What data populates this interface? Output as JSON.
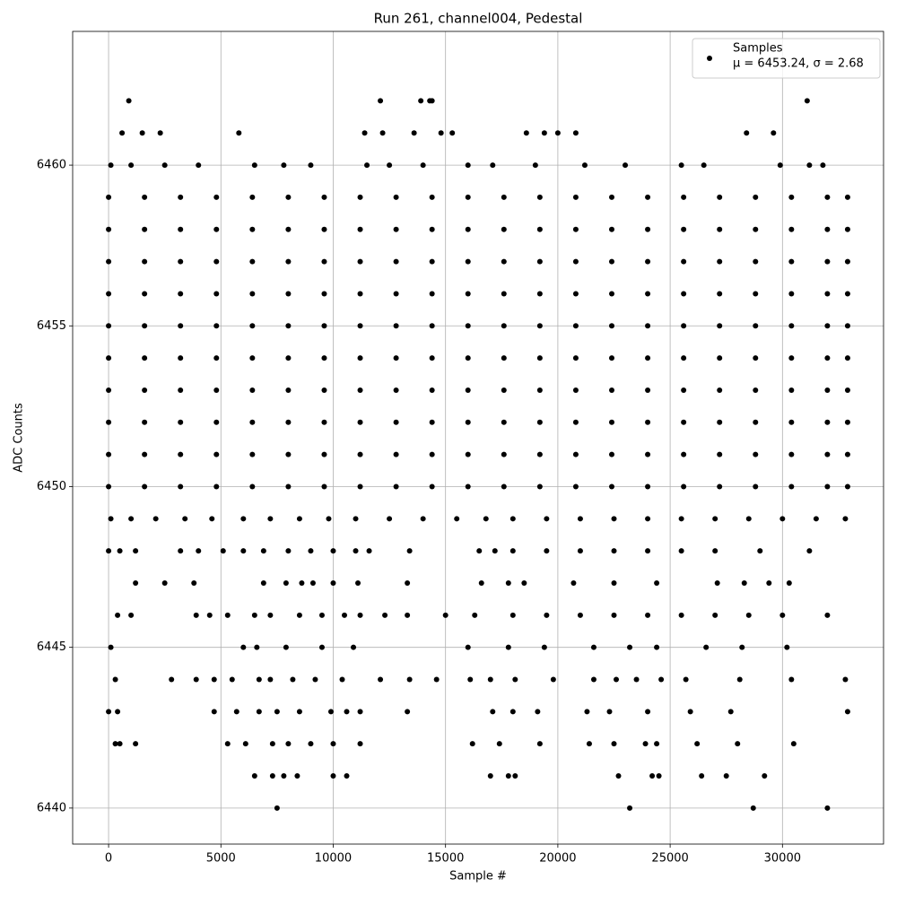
{
  "chart_data": {
    "type": "scatter",
    "title": "Run 261, channel004, Pedestal",
    "x_label": "Sample #",
    "y_label": "ADC Counts",
    "xlim": [
      -1600,
      34500
    ],
    "ylim": [
      6438.88,
      6464.16
    ],
    "xticks": [
      0,
      5000,
      10000,
      15000,
      20000,
      25000,
      30000
    ],
    "yticks": [
      6440,
      6445,
      6450,
      6455,
      6460
    ],
    "grid": true,
    "legend_position": "upper right",
    "legend_note": "μ = 6453.24, σ = 2.68",
    "series": [
      {
        "name": "Samples",
        "color": "#000000",
        "x": [
          900,
          12100,
          13900,
          14300,
          14400,
          31100,
          600,
          1500,
          2300,
          5800,
          11400,
          12200,
          13600,
          14800,
          15300,
          18600,
          19400,
          20000,
          20800,
          28400,
          29600,
          100,
          1000,
          2500,
          4000,
          6500,
          7800,
          9000,
          11500,
          12500,
          14000,
          16000,
          17100,
          19000,
          21200,
          23000,
          25500,
          26500,
          29900,
          31200,
          31800,
          0,
          1600,
          3200,
          4800,
          6400,
          8000,
          9600,
          11200,
          12800,
          14400,
          16000,
          17600,
          19200,
          20800,
          22400,
          24000,
          25600,
          27200,
          28800,
          30400,
          32000,
          32900,
          0,
          1600,
          3200,
          4800,
          6400,
          8000,
          9600,
          11200,
          12800,
          14400,
          16000,
          17600,
          19200,
          20800,
          22400,
          24000,
          25600,
          27200,
          28800,
          30400,
          32000,
          32900,
          0,
          1600,
          3200,
          4800,
          6400,
          8000,
          9600,
          11200,
          12800,
          14400,
          16000,
          17600,
          19200,
          20800,
          22400,
          24000,
          25600,
          27200,
          28800,
          30400,
          32000,
          32900,
          0,
          1600,
          3200,
          4800,
          6400,
          8000,
          9600,
          11200,
          12800,
          14400,
          16000,
          17600,
          19200,
          20800,
          22400,
          24000,
          25600,
          27200,
          28800,
          30400,
          32000,
          32900,
          0,
          1600,
          3200,
          4800,
          6400,
          8000,
          9600,
          11200,
          12800,
          14400,
          16000,
          17600,
          19200,
          20800,
          22400,
          24000,
          25600,
          27200,
          28800,
          30400,
          32000,
          32900,
          0,
          1600,
          3200,
          4800,
          6400,
          8000,
          9600,
          11200,
          12800,
          14400,
          16000,
          17600,
          19200,
          20800,
          22400,
          24000,
          25600,
          27200,
          28800,
          30400,
          32000,
          32900,
          0,
          1600,
          3200,
          4800,
          6400,
          8000,
          9600,
          11200,
          12800,
          14400,
          16000,
          17600,
          19200,
          20800,
          22400,
          24000,
          25600,
          27200,
          28800,
          30400,
          32000,
          32900,
          0,
          1600,
          3200,
          4800,
          6400,
          8000,
          9600,
          11200,
          12800,
          14400,
          16000,
          17600,
          19200,
          20800,
          22400,
          24000,
          25600,
          27200,
          28800,
          30400,
          32000,
          32900,
          0,
          1600,
          3200,
          4800,
          6400,
          8000,
          9600,
          11200,
          12800,
          14400,
          16000,
          17600,
          19200,
          20800,
          22400,
          24000,
          25600,
          27200,
          28800,
          30400,
          32000,
          32900,
          0,
          1600,
          3200,
          4800,
          6400,
          8000,
          9600,
          11200,
          12800,
          14400,
          16000,
          17600,
          19200,
          20800,
          22400,
          24000,
          25600,
          27200,
          28800,
          30400,
          32000,
          32900,
          100,
          1000,
          2100,
          3400,
          4600,
          6000,
          7200,
          8500,
          9800,
          11000,
          12500,
          14000,
          15500,
          16800,
          18000,
          19500,
          21000,
          22500,
          24000,
          25500,
          27000,
          28500,
          30000,
          31500,
          32800,
          0,
          500,
          1200,
          3200,
          4000,
          5100,
          6000,
          6900,
          8000,
          9000,
          10000,
          11000,
          11600,
          13400,
          16500,
          17200,
          18000,
          19500,
          21000,
          22500,
          24000,
          25500,
          27000,
          29000,
          31200,
          1200,
          2500,
          3800,
          6900,
          7900,
          8600,
          9100,
          10000,
          11100,
          13300,
          16600,
          17800,
          18500,
          20700,
          22500,
          24400,
          27100,
          28300,
          29400,
          30300,
          400,
          1000,
          3900,
          4500,
          5300,
          6500,
          7200,
          8500,
          9500,
          10500,
          11200,
          12300,
          13300,
          15000,
          16300,
          18000,
          19500,
          21000,
          22500,
          24000,
          25500,
          27000,
          28500,
          30000,
          32000,
          100,
          6000,
          6600,
          7900,
          9500,
          10900,
          16000,
          17800,
          19400,
          21600,
          23200,
          24400,
          26600,
          28200,
          30200,
          300,
          2800,
          3900,
          4700,
          5500,
          6700,
          7200,
          8200,
          9200,
          10400,
          12100,
          13400,
          14600,
          16100,
          17000,
          18100,
          19800,
          21600,
          22600,
          23500,
          24600,
          25700,
          28100,
          30400,
          32800,
          0,
          400,
          4700,
          5700,
          6700,
          7500,
          8500,
          9900,
          10600,
          11200,
          13300,
          17100,
          18000,
          19100,
          21300,
          22300,
          24000,
          25900,
          27700,
          32900,
          300,
          500,
          1200,
          5300,
          6100,
          7300,
          8000,
          9000,
          10000,
          11200,
          16200,
          17400,
          19200,
          21400,
          22500,
          23900,
          24400,
          26200,
          28000,
          30500,
          6500,
          7300,
          7800,
          8400,
          10000,
          10600,
          17000,
          17800,
          18100,
          22700,
          24200,
          24500,
          26400,
          27500,
          29200,
          7500,
          23200,
          28700,
          32000
        ],
        "values": [
          6462,
          6462,
          6462,
          6462,
          6462,
          6462,
          6461,
          6461,
          6461,
          6461,
          6461,
          6461,
          6461,
          6461,
          6461,
          6461,
          6461,
          6461,
          6461,
          6461,
          6461,
          6460,
          6460,
          6460,
          6460,
          6460,
          6460,
          6460,
          6460,
          6460,
          6460,
          6460,
          6460,
          6460,
          6460,
          6460,
          6460,
          6460,
          6460,
          6460,
          6460,
          6459,
          6459,
          6459,
          6459,
          6459,
          6459,
          6459,
          6459,
          6459,
          6459,
          6459,
          6459,
          6459,
          6459,
          6459,
          6459,
          6459,
          6459,
          6459,
          6459,
          6459,
          6459,
          6458,
          6458,
          6458,
          6458,
          6458,
          6458,
          6458,
          6458,
          6458,
          6458,
          6458,
          6458,
          6458,
          6458,
          6458,
          6458,
          6458,
          6458,
          6458,
          6458,
          6458,
          6458,
          6457,
          6457,
          6457,
          6457,
          6457,
          6457,
          6457,
          6457,
          6457,
          6457,
          6457,
          6457,
          6457,
          6457,
          6457,
          6457,
          6457,
          6457,
          6457,
          6457,
          6457,
          6457,
          6456,
          6456,
          6456,
          6456,
          6456,
          6456,
          6456,
          6456,
          6456,
          6456,
          6456,
          6456,
          6456,
          6456,
          6456,
          6456,
          6456,
          6456,
          6456,
          6456,
          6456,
          6456,
          6455,
          6455,
          6455,
          6455,
          6455,
          6455,
          6455,
          6455,
          6455,
          6455,
          6455,
          6455,
          6455,
          6455,
          6455,
          6455,
          6455,
          6455,
          6455,
          6455,
          6455,
          6455,
          6454,
          6454,
          6454,
          6454,
          6454,
          6454,
          6454,
          6454,
          6454,
          6454,
          6454,
          6454,
          6454,
          6454,
          6454,
          6454,
          6454,
          6454,
          6454,
          6454,
          6454,
          6454,
          6453,
          6453,
          6453,
          6453,
          6453,
          6453,
          6453,
          6453,
          6453,
          6453,
          6453,
          6453,
          6453,
          6453,
          6453,
          6453,
          6453,
          6453,
          6453,
          6453,
          6453,
          6453,
          6452,
          6452,
          6452,
          6452,
          6452,
          6452,
          6452,
          6452,
          6452,
          6452,
          6452,
          6452,
          6452,
          6452,
          6452,
          6452,
          6452,
          6452,
          6452,
          6452,
          6452,
          6452,
          6451,
          6451,
          6451,
          6451,
          6451,
          6451,
          6451,
          6451,
          6451,
          6451,
          6451,
          6451,
          6451,
          6451,
          6451,
          6451,
          6451,
          6451,
          6451,
          6451,
          6451,
          6451,
          6450,
          6450,
          6450,
          6450,
          6450,
          6450,
          6450,
          6450,
          6450,
          6450,
          6450,
          6450,
          6450,
          6450,
          6450,
          6450,
          6450,
          6450,
          6450,
          6450,
          6450,
          6450,
          6449,
          6449,
          6449,
          6449,
          6449,
          6449,
          6449,
          6449,
          6449,
          6449,
          6449,
          6449,
          6449,
          6449,
          6449,
          6449,
          6449,
          6449,
          6449,
          6449,
          6449,
          6449,
          6449,
          6449,
          6449,
          6448,
          6448,
          6448,
          6448,
          6448,
          6448,
          6448,
          6448,
          6448,
          6448,
          6448,
          6448,
          6448,
          6448,
          6448,
          6448,
          6448,
          6448,
          6448,
          6448,
          6448,
          6448,
          6448,
          6448,
          6448,
          6447,
          6447,
          6447,
          6447,
          6447,
          6447,
          6447,
          6447,
          6447,
          6447,
          6447,
          6447,
          6447,
          6447,
          6447,
          6447,
          6447,
          6447,
          6447,
          6447,
          6446,
          6446,
          6446,
          6446,
          6446,
          6446,
          6446,
          6446,
          6446,
          6446,
          6446,
          6446,
          6446,
          6446,
          6446,
          6446,
          6446,
          6446,
          6446,
          6446,
          6446,
          6446,
          6446,
          6446,
          6446,
          6445,
          6445,
          6445,
          6445,
          6445,
          6445,
          6445,
          6445,
          6445,
          6445,
          6445,
          6445,
          6445,
          6445,
          6445,
          6444,
          6444,
          6444,
          6444,
          6444,
          6444,
          6444,
          6444,
          6444,
          6444,
          6444,
          6444,
          6444,
          6444,
          6444,
          6444,
          6444,
          6444,
          6444,
          6444,
          6444,
          6444,
          6444,
          6444,
          6444,
          6443,
          6443,
          6443,
          6443,
          6443,
          6443,
          6443,
          6443,
          6443,
          6443,
          6443,
          6443,
          6443,
          6443,
          6443,
          6443,
          6443,
          6443,
          6443,
          6443,
          6442,
          6442,
          6442,
          6442,
          6442,
          6442,
          6442,
          6442,
          6442,
          6442,
          6442,
          6442,
          6442,
          6442,
          6442,
          6442,
          6442,
          6442,
          6442,
          6442,
          6441,
          6441,
          6441,
          6441,
          6441,
          6441,
          6441,
          6441,
          6441,
          6441,
          6441,
          6441,
          6441,
          6441,
          6441,
          6440,
          6440,
          6440,
          6440
        ]
      }
    ]
  }
}
